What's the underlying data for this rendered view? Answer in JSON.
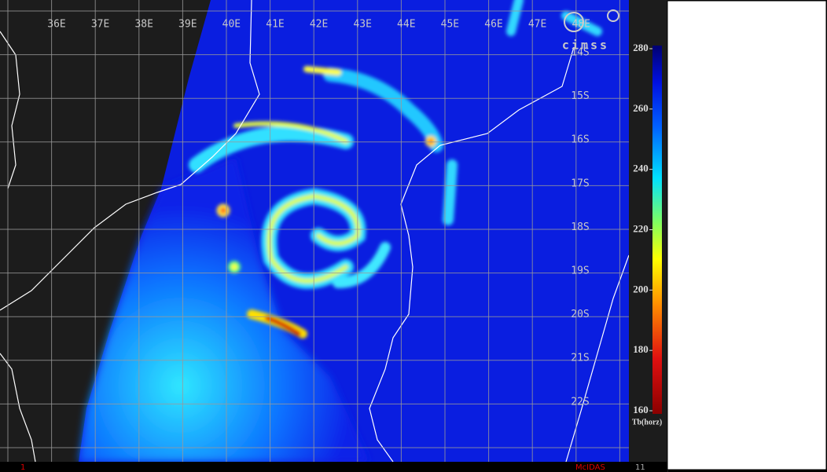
{
  "longitude_labels": [
    "36E",
    "37E",
    "38E",
    "39E",
    "40E",
    "41E",
    "42E",
    "43E",
    "44E",
    "45E",
    "46E",
    "47E",
    "48E"
  ],
  "latitude_labels": [
    "14S",
    "15S",
    "16S",
    "17S",
    "18S",
    "19S",
    "20S",
    "21S",
    "22S"
  ],
  "colorbar": {
    "label": "Tb(horz)",
    "range": [
      160,
      280
    ],
    "ticks": [
      160,
      180,
      200,
      220,
      240,
      260,
      280
    ]
  },
  "logo": "cimss",
  "footer": {
    "left": "1",
    "center": "McIDAS",
    "right": "11"
  }
}
